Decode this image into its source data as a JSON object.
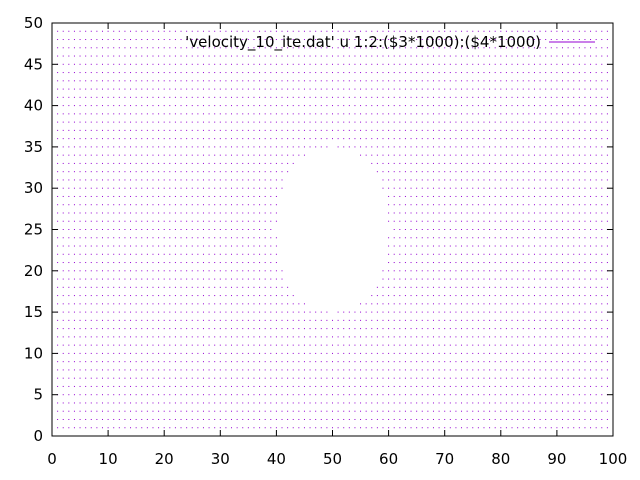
{
  "chart_data": {
    "type": "scatter",
    "title": "",
    "xlabel": "",
    "ylabel": "",
    "xlim": [
      0,
      100
    ],
    "ylim": [
      0,
      50
    ],
    "x_ticks": [
      0,
      10,
      20,
      30,
      40,
      50,
      60,
      70,
      80,
      90,
      100
    ],
    "y_ticks": [
      0,
      5,
      10,
      15,
      20,
      25,
      30,
      35,
      40,
      45,
      50
    ],
    "grid": false,
    "legend_position": "top-right",
    "series": [
      {
        "name": "'velocity_10_ite.dat' u 1:2:($3*1000):($4*1000)",
        "color": "#9400d3",
        "x_range": [
          1,
          99
        ],
        "y_range": [
          1,
          49
        ],
        "step": 1,
        "empty_region": {
          "shape": "ellipse",
          "center": [
            50,
            25
          ],
          "radius_x": 10,
          "radius_y": 10
        }
      }
    ]
  }
}
